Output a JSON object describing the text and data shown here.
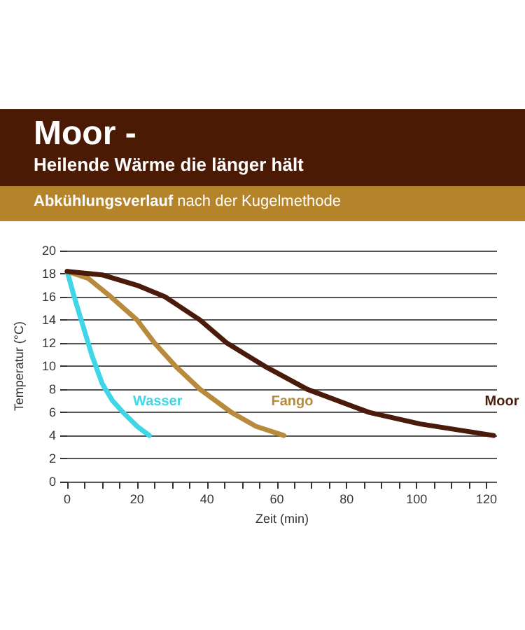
{
  "chart_data": {
    "type": "line",
    "title": "Moor -",
    "subtitle": "Heilende Wärme die länger hält",
    "annotations": [
      "Abkühlungsverlauf nach der Kugelmethode"
    ],
    "xlabel": "Zeit (min)",
    "ylabel": "Temperatur (°C)",
    "xlim": [
      0,
      123
    ],
    "ylim": [
      0,
      20
    ],
    "xticks": [
      0,
      {
        "value": 5,
        "label": null
      },
      {
        "value": 10,
        "label": null
      },
      {
        "value": 15,
        "label": null
      },
      20,
      {
        "value": 25,
        "label": null
      },
      {
        "value": 30,
        "label": null
      },
      {
        "value": 35,
        "label": null
      },
      40,
      {
        "value": 45,
        "label": null
      },
      {
        "value": 50,
        "label": null
      },
      {
        "value": 55,
        "label": null
      },
      60,
      {
        "value": 65,
        "label": null
      },
      {
        "value": 70,
        "label": null
      },
      {
        "value": 75,
        "label": null
      },
      80,
      {
        "value": 85,
        "label": null
      },
      {
        "value": 90,
        "label": null
      },
      {
        "value": 95,
        "label": null
      },
      100,
      {
        "value": 105,
        "label": null
      },
      {
        "value": 110,
        "label": null
      },
      {
        "value": 115,
        "label": null
      },
      120
    ],
    "yticks": [
      0,
      2,
      4,
      6,
      8,
      10,
      12,
      14,
      16,
      18,
      20
    ],
    "grid": "y",
    "legend": false,
    "marker": "none",
    "line_style": "solid",
    "series": [
      {
        "name": "Wasser",
        "color": "#3fd6e8",
        "x": [
          0,
          2,
          4,
          7,
          10,
          13,
          16,
          20,
          23.5
        ],
        "values": [
          18.2,
          16,
          14,
          11,
          8.5,
          7,
          6,
          4.8,
          4
        ]
      },
      {
        "name": "Fango",
        "color": "#b88a3c",
        "x": [
          0,
          6,
          12.5,
          20,
          25,
          31,
          38,
          47,
          54,
          62
        ],
        "values": [
          18.2,
          17.6,
          16,
          14,
          12,
          10,
          8,
          6,
          4.8,
          4
        ]
      },
      {
        "name": "Moor",
        "color": "#4a1a0a",
        "x": [
          0,
          10,
          20,
          28,
          38,
          45.7,
          56.5,
          68.7,
          86.4,
          101,
          122
        ],
        "values": [
          18.2,
          17.9,
          17,
          16,
          14,
          12,
          10,
          8,
          6,
          5,
          4
        ]
      }
    ]
  }
}
